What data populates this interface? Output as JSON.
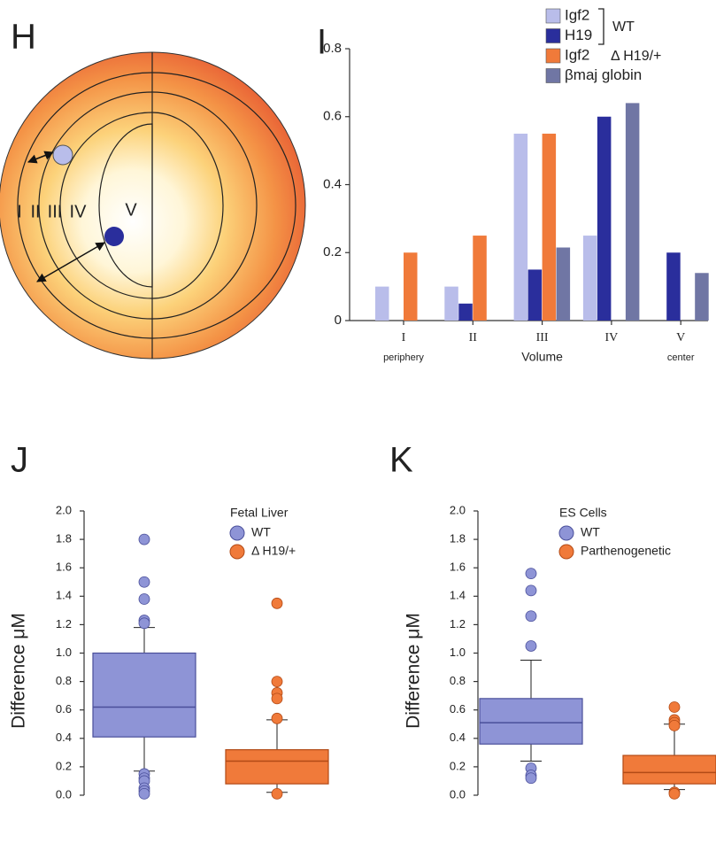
{
  "panel_h": {
    "label": "H",
    "zones": [
      "I",
      "II",
      "III",
      "IV",
      "V"
    ]
  },
  "chart_data": [
    {
      "type": "bar",
      "panel": "I",
      "x_label": "Volume",
      "annotations": [
        "periphery",
        "center"
      ],
      "categories": [
        "I",
        "II",
        "III",
        "IV",
        "V"
      ],
      "ylim": [
        0,
        0.8
      ],
      "yticks": [
        0,
        0.2,
        0.4,
        0.6,
        0.8
      ],
      "legend_notes": [
        "WT",
        "Δ H19/+"
      ],
      "series": [
        {
          "name": "Igf2",
          "color": "#b9bdea",
          "values": [
            0.1,
            0.1,
            0.55,
            0.25,
            null
          ]
        },
        {
          "name": "H19",
          "color": "#2a2e9c",
          "values": [
            null,
            0.05,
            0.15,
            0.6,
            0.2
          ]
        },
        {
          "name": "Igf2",
          "color": "#f07a3a",
          "values": [
            0.2,
            0.25,
            0.55,
            null,
            null
          ]
        },
        {
          "name": "βmaj globin",
          "color": "#7076a4",
          "values": [
            null,
            null,
            0.215,
            0.64,
            0.14
          ]
        }
      ]
    },
    {
      "type": "box",
      "panel": "J",
      "y_label": "Difference μM",
      "legend_title": "Fetal Liver",
      "ylim": [
        0,
        2
      ],
      "yticks": [
        {
          "value": 0,
          "label": "0.0"
        },
        0.2,
        0.4,
        0.6,
        0.8,
        {
          "value": 1,
          "label": "1.0"
        },
        1.2,
        1.4,
        1.6,
        1.8,
        {
          "value": 2,
          "label": "2.0"
        }
      ],
      "series": [
        {
          "name": "WT",
          "color": "#8e94d6",
          "min": 0.17,
          "q1": 0.41,
          "median": 0.62,
          "q3": 1.0,
          "max": 1.18,
          "outliers": [
            1.8,
            1.5,
            1.38,
            1.23,
            1.21,
            0.15,
            0.12,
            0.1,
            0.05,
            0.03,
            0.01
          ]
        },
        {
          "name": "Δ H19/+",
          "color": "#f07a3a",
          "min": 0.02,
          "q1": 0.08,
          "median": 0.24,
          "q3": 0.32,
          "max": 0.53,
          "outliers": [
            1.35,
            0.8,
            0.72,
            0.68,
            0.54,
            0.01
          ]
        }
      ]
    },
    {
      "type": "box",
      "panel": "K",
      "y_label": "Difference μM",
      "legend_title": "ES Cells",
      "ylim": [
        0,
        2
      ],
      "yticks": [
        {
          "value": 0,
          "label": "0.0"
        },
        0.2,
        0.4,
        0.6,
        0.8,
        {
          "value": 1,
          "label": "1.0"
        },
        1.2,
        1.4,
        1.6,
        1.8,
        {
          "value": 2,
          "label": "2.0"
        }
      ],
      "series": [
        {
          "name": "WT",
          "color": "#8e94d6",
          "min": 0.24,
          "q1": 0.36,
          "median": 0.51,
          "q3": 0.68,
          "max": 0.95,
          "outliers": [
            1.56,
            1.44,
            1.26,
            1.05,
            0.19,
            0.14,
            0.12
          ]
        },
        {
          "name": "Parthenogenetic",
          "color": "#f07a3a",
          "min": 0.04,
          "q1": 0.08,
          "median": 0.16,
          "q3": 0.28,
          "max": 0.5,
          "outliers": [
            0.62,
            0.53,
            0.51,
            0.49,
            0.02,
            0.01
          ]
        }
      ]
    }
  ]
}
